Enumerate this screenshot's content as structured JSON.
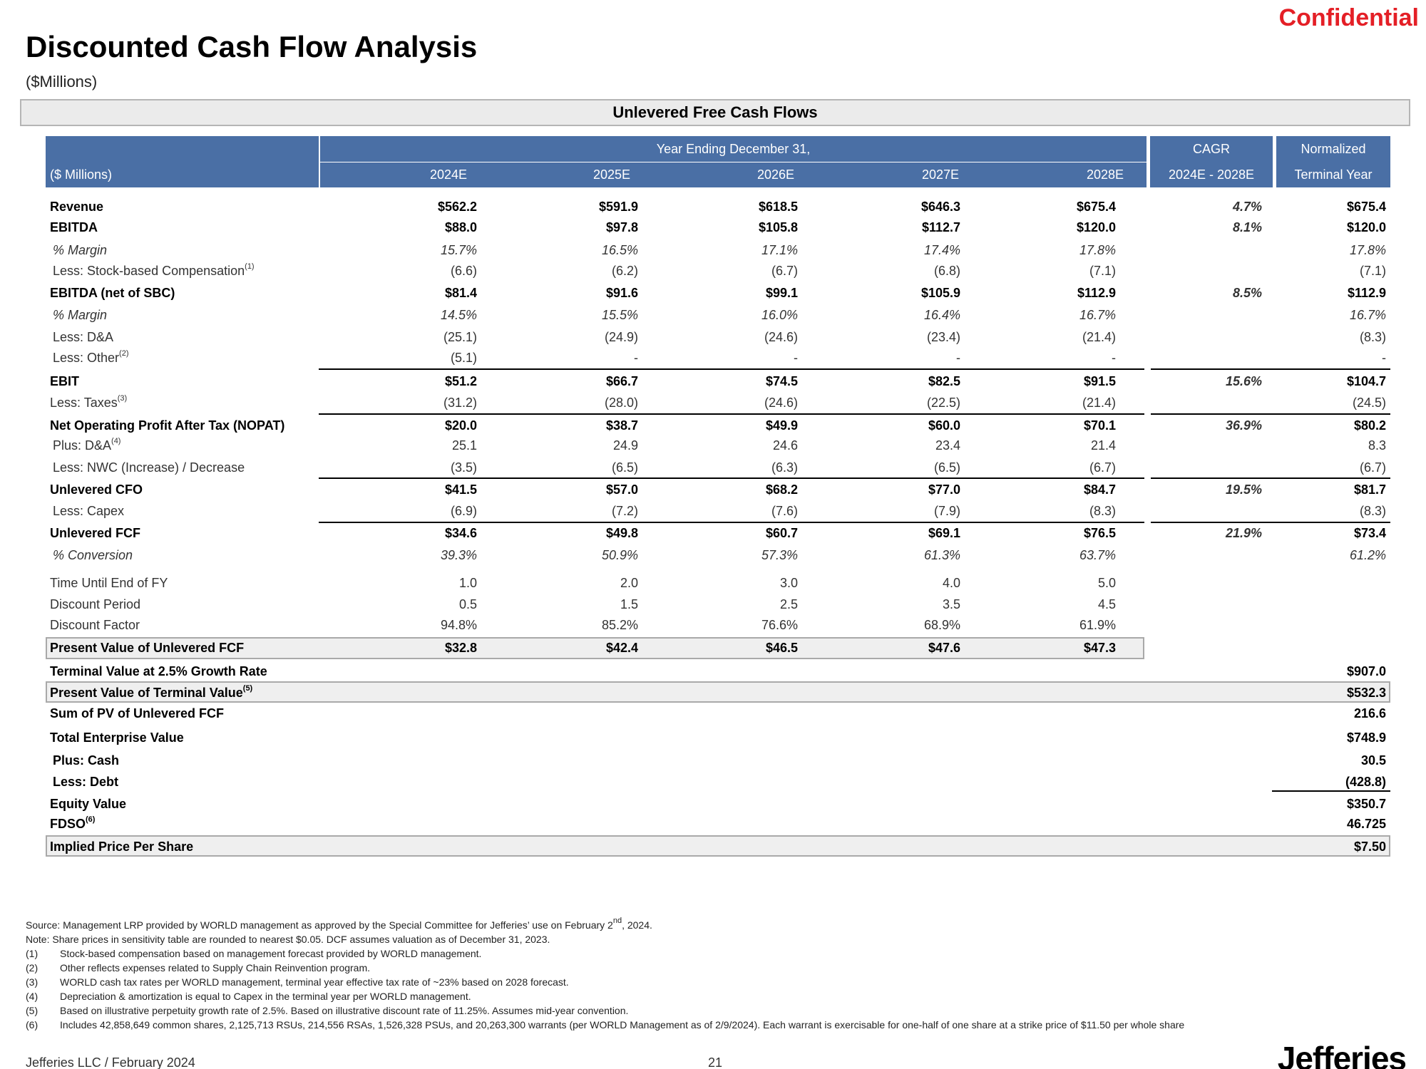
{
  "page": {
    "confidential": "Confidential",
    "title": "Discounted Cash Flow Analysis",
    "subtitle": "($Millions)",
    "banner": "Unlevered Free Cash Flows"
  },
  "header": {
    "units": "($ Millions)",
    "year_ending": "Year Ending December 31,",
    "years": [
      "2024E",
      "2025E",
      "2026E",
      "2027E",
      "2028E"
    ],
    "cagr_top": "CAGR",
    "cagr_bottom": "2024E - 2028E",
    "norm_top": "Normalized",
    "norm_bottom": "Terminal Year"
  },
  "rows": [
    {
      "label": "Revenue",
      "values": [
        "$562.2",
        "$591.9",
        "$618.5",
        "$646.3",
        "$675.4"
      ],
      "cagr": "4.7%",
      "terminal": "$675.4"
    },
    {
      "label": "EBITDA",
      "values": [
        "$88.0",
        "$97.8",
        "$105.8",
        "$112.7",
        "$120.0"
      ],
      "cagr": "8.1%",
      "terminal": "$120.0"
    },
    {
      "label": "% Margin",
      "values": [
        "15.7%",
        "16.5%",
        "17.1%",
        "17.4%",
        "17.8%"
      ],
      "cagr": "",
      "terminal": "17.8%"
    },
    {
      "label": "Less: Stock-based Compensation",
      "note": "(1)",
      "values": [
        "(6.6)",
        "(6.2)",
        "(6.7)",
        "(6.8)",
        "(7.1)"
      ],
      "cagr": "",
      "terminal": "(7.1)"
    },
    {
      "label": "EBITDA (net of SBC)",
      "values": [
        "$81.4",
        "$91.6",
        "$99.1",
        "$105.9",
        "$112.9"
      ],
      "cagr": "8.5%",
      "terminal": "$112.9"
    },
    {
      "label": "% Margin",
      "values": [
        "14.5%",
        "15.5%",
        "16.0%",
        "16.4%",
        "16.7%"
      ],
      "cagr": "",
      "terminal": "16.7%"
    },
    {
      "label": "Less: D&A",
      "values": [
        "(25.1)",
        "(24.9)",
        "(24.6)",
        "(23.4)",
        "(21.4)"
      ],
      "cagr": "",
      "terminal": "(8.3)"
    },
    {
      "label": "Less: Other",
      "note": "(2)",
      "values": [
        "(5.1)",
        "-",
        "-",
        "-",
        "-"
      ],
      "cagr": "",
      "terminal": "-"
    },
    {
      "label": "EBIT",
      "values": [
        "$51.2",
        "$66.7",
        "$74.5",
        "$82.5",
        "$91.5"
      ],
      "cagr": "15.6%",
      "terminal": "$104.7"
    },
    {
      "label": "Less: Taxes",
      "note": "(3)",
      "values": [
        "(31.2)",
        "(28.0)",
        "(24.6)",
        "(22.5)",
        "(21.4)"
      ],
      "cagr": "",
      "terminal": "(24.5)"
    },
    {
      "label": "Net Operating Profit After Tax (NOPAT)",
      "values": [
        "$20.0",
        "$38.7",
        "$49.9",
        "$60.0",
        "$70.1"
      ],
      "cagr": "36.9%",
      "terminal": "$80.2"
    },
    {
      "label": "Plus: D&A",
      "note": "(4)",
      "values": [
        "25.1",
        "24.9",
        "24.6",
        "23.4",
        "21.4"
      ],
      "cagr": "",
      "terminal": "8.3"
    },
    {
      "label": "Less: NWC (Increase) / Decrease",
      "values": [
        "(3.5)",
        "(6.5)",
        "(6.3)",
        "(6.5)",
        "(6.7)"
      ],
      "cagr": "",
      "terminal": "(6.7)"
    },
    {
      "label": "Unlevered CFO",
      "values": [
        "$41.5",
        "$57.0",
        "$68.2",
        "$77.0",
        "$84.7"
      ],
      "cagr": "19.5%",
      "terminal": "$81.7"
    },
    {
      "label": "Less: Capex",
      "values": [
        "(6.9)",
        "(7.2)",
        "(7.6)",
        "(7.9)",
        "(8.3)"
      ],
      "cagr": "",
      "terminal": "(8.3)"
    },
    {
      "label": "Unlevered FCF",
      "values": [
        "$34.6",
        "$49.8",
        "$60.7",
        "$69.1",
        "$76.5"
      ],
      "cagr": "21.9%",
      "terminal": "$73.4"
    },
    {
      "label": "% Conversion",
      "values": [
        "39.3%",
        "50.9%",
        "57.3%",
        "61.3%",
        "63.7%"
      ],
      "cagr": "",
      "terminal": "61.2%"
    },
    {
      "label": "Time Until End of FY",
      "values": [
        "1.0",
        "2.0",
        "3.0",
        "4.0",
        "5.0"
      ],
      "cagr": "",
      "terminal": ""
    },
    {
      "label": "Discount Period",
      "values": [
        "0.5",
        "1.5",
        "2.5",
        "3.5",
        "4.5"
      ],
      "cagr": "",
      "terminal": ""
    },
    {
      "label": "Discount Factor",
      "values": [
        "94.8%",
        "85.2%",
        "76.6%",
        "68.9%",
        "61.9%"
      ],
      "cagr": "",
      "terminal": ""
    },
    {
      "label": "Present Value of Unlevered FCF",
      "values": [
        "$32.8",
        "$42.4",
        "$46.5",
        "$47.6",
        "$47.3"
      ],
      "cagr": "",
      "terminal": ""
    }
  ],
  "summary": [
    {
      "label": "Terminal Value at 2.5% Growth Rate",
      "value": "$907.0"
    },
    {
      "label": "Present Value of Terminal Value",
      "note": "(5)",
      "value": "$532.3"
    },
    {
      "label": "Sum of PV of Unlevered FCF",
      "value": "216.6"
    },
    {
      "label": "Total Enterprise Value",
      "value": "$748.9"
    },
    {
      "label": "Plus: Cash",
      "value": "30.5"
    },
    {
      "label": "Less: Debt",
      "value": "(428.8)"
    },
    {
      "label": "Equity Value",
      "value": "$350.7"
    },
    {
      "label": "FDSO",
      "note": "(6)",
      "value": "46.725"
    },
    {
      "label": "Implied Price Per Share",
      "value": "$7.50"
    }
  ],
  "notes": {
    "source_pre": "Source: Management LRP provided by WORLD management as approved by the Special Committee for Jefferies’ use on February 2",
    "source_sup": "nd",
    "source_post": ", 2024.",
    "note": "Note: Share prices in sensitivity table are rounded to nearest $0.05. DCF assumes valuation as of December 31, 2023.",
    "footnotes": [
      {
        "num": "(1)",
        "text": "Stock-based compensation based on management forecast provided by WORLD management."
      },
      {
        "num": "(2)",
        "text": "Other reflects expenses related to Supply Chain Reinvention program."
      },
      {
        "num": "(3)",
        "text": "WORLD cash tax rates per WORLD management, terminal year effective tax rate of ~23% based on 2028 forecast."
      },
      {
        "num": "(4)",
        "text": "Depreciation & amortization is equal to Capex in the terminal year per WORLD management."
      },
      {
        "num": "(5)",
        "text": "Based on illustrative perpetuity growth rate of 2.5%. Based on illustrative discount rate of 11.25%. Assumes mid-year convention."
      },
      {
        "num": "(6)",
        "text": "Includes 42,858,649 common shares, 2,125,713 RSUs, 214,556 RSAs, 1,526,328 PSUs, and 20,263,300 warrants (per WORLD Management as of 2/9/2024). Each warrant is exercisable for one-half of one share at a strike price of $11.50 per whole share"
      }
    ]
  },
  "footer": {
    "left": "Jefferies LLC / February 2024",
    "page": "21",
    "logo": "Jefferies"
  }
}
